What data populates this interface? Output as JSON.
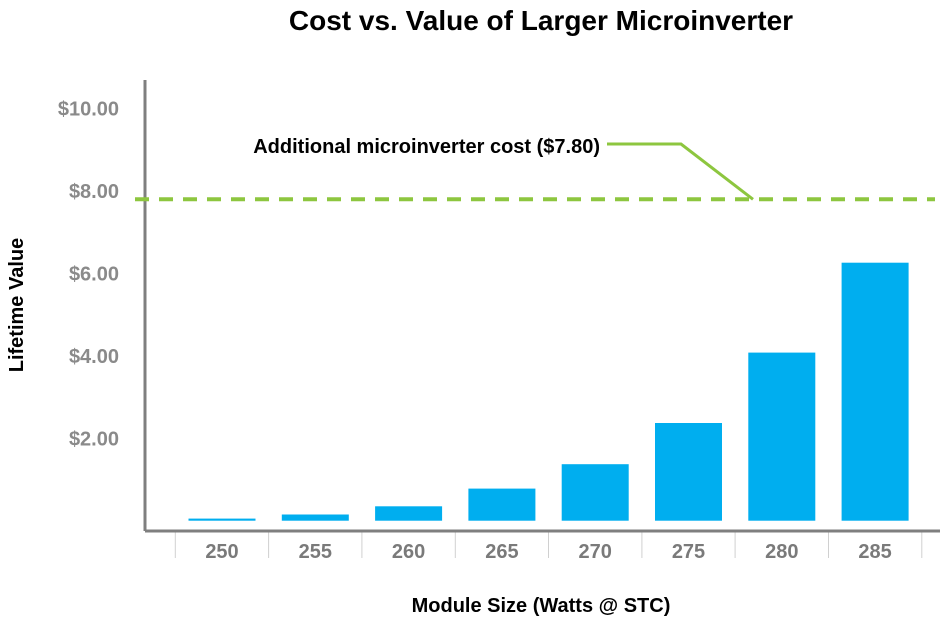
{
  "chart_data": {
    "type": "bar",
    "title": "Cost vs. Value of Larger Microinverter",
    "xlabel": "Module Size (Watts @ STC)",
    "ylabel": "Lifetime Value",
    "categories": [
      "250",
      "255",
      "260",
      "265",
      "270",
      "275",
      "280",
      "285"
    ],
    "values": [
      0.05,
      0.15,
      0.35,
      0.78,
      1.37,
      2.37,
      4.08,
      6.26
    ],
    "ylim": [
      -0.25,
      10.5
    ],
    "yticks": [
      2,
      4,
      6,
      8,
      10
    ],
    "ytick_labels": [
      "$2.00",
      "$4.00",
      "$6.00",
      "$8.00",
      "$10.00"
    ],
    "grid": false,
    "reference_line": {
      "value": 7.8,
      "style": "dashed",
      "label": "Additional microinverter cost ($7.80)"
    },
    "colors": {
      "bar": "#00aeef",
      "reference_line": "#8dc63f",
      "axis": "#7f7f7f",
      "tick_label": "#8a8a8a"
    }
  }
}
